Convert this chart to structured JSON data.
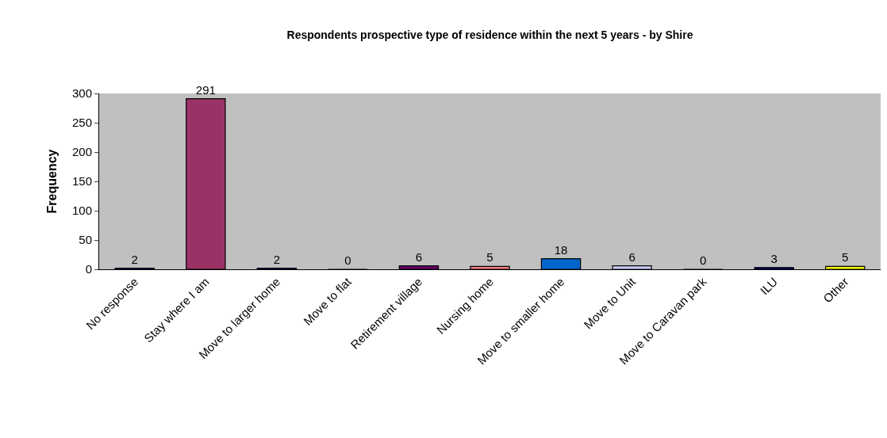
{
  "chart_data": {
    "type": "bar",
    "title": "Respondents prospective type of residence within the next 5 years - by Shire",
    "ylabel": "Frequency",
    "categories": [
      "No response",
      "Stay where I am",
      "Move to larger home",
      "Move to flat",
      "Retirement village",
      "Nursing home",
      "Move to smaller home",
      "Move to Unit",
      "Move to Caravan park",
      "ILU",
      "Other"
    ],
    "values": [
      2,
      291,
      2,
      0,
      6,
      5,
      18,
      6,
      0,
      3,
      5
    ],
    "colors": [
      "#000080",
      "#993366",
      "#000080",
      "#000080",
      "#660066",
      "#ff8080",
      "#0066cc",
      "#ccccff",
      "#000080",
      "#000080",
      "#ffff00"
    ],
    "ylim": [
      0,
      300
    ],
    "yticks": [
      0,
      50,
      100,
      150,
      200,
      250,
      300
    ],
    "data_labels": true,
    "grid": false,
    "legend": false
  }
}
